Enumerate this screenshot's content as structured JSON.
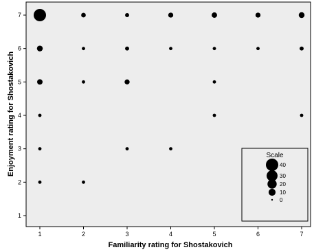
{
  "chart_data": {
    "type": "scatter",
    "encoding": "bubble",
    "xlabel": "Familiarity rating for Shostakovich",
    "ylabel": "Enjoyment rating for Shostakovich",
    "xlim": [
      1,
      7
    ],
    "ylim": [
      1,
      7
    ],
    "x_ticks": [
      1,
      2,
      3,
      4,
      5,
      6,
      7
    ],
    "y_ticks": [
      1,
      2,
      3,
      4,
      5,
      6,
      7
    ],
    "grid": false,
    "plot_background": "#ededed",
    "point_color": "#000000",
    "points": [
      {
        "x": 1,
        "y": 7,
        "count": 40
      },
      {
        "x": 2,
        "y": 7,
        "count": 3
      },
      {
        "x": 3,
        "y": 7,
        "count": 2
      },
      {
        "x": 4,
        "y": 7,
        "count": 4
      },
      {
        "x": 5,
        "y": 7,
        "count": 5
      },
      {
        "x": 6,
        "y": 7,
        "count": 4
      },
      {
        "x": 7,
        "y": 7,
        "count": 6
      },
      {
        "x": 1,
        "y": 6,
        "count": 6
      },
      {
        "x": 2,
        "y": 6,
        "count": 1
      },
      {
        "x": 3,
        "y": 6,
        "count": 2
      },
      {
        "x": 4,
        "y": 6,
        "count": 1
      },
      {
        "x": 5,
        "y": 6,
        "count": 1
      },
      {
        "x": 6,
        "y": 6,
        "count": 1
      },
      {
        "x": 7,
        "y": 6,
        "count": 2
      },
      {
        "x": 1,
        "y": 5,
        "count": 5
      },
      {
        "x": 2,
        "y": 5,
        "count": 1
      },
      {
        "x": 3,
        "y": 5,
        "count": 4
      },
      {
        "x": 5,
        "y": 5,
        "count": 1
      },
      {
        "x": 1,
        "y": 4,
        "count": 1
      },
      {
        "x": 5,
        "y": 4,
        "count": 1
      },
      {
        "x": 7,
        "y": 4,
        "count": 1
      },
      {
        "x": 1,
        "y": 3,
        "count": 1
      },
      {
        "x": 3,
        "y": 3,
        "count": 1
      },
      {
        "x": 4,
        "y": 3,
        "count": 1
      },
      {
        "x": 1,
        "y": 2,
        "count": 1
      },
      {
        "x": 2,
        "y": 2,
        "count": 1
      }
    ],
    "legend": {
      "title": "Scale",
      "placement": "bottom-right",
      "entries": [
        {
          "label": "40",
          "value": 40
        },
        {
          "label": "30",
          "value": 30
        },
        {
          "label": "20",
          "value": 20
        },
        {
          "label": "10",
          "value": 10
        },
        {
          "label": "0",
          "value": 0
        }
      ]
    }
  }
}
